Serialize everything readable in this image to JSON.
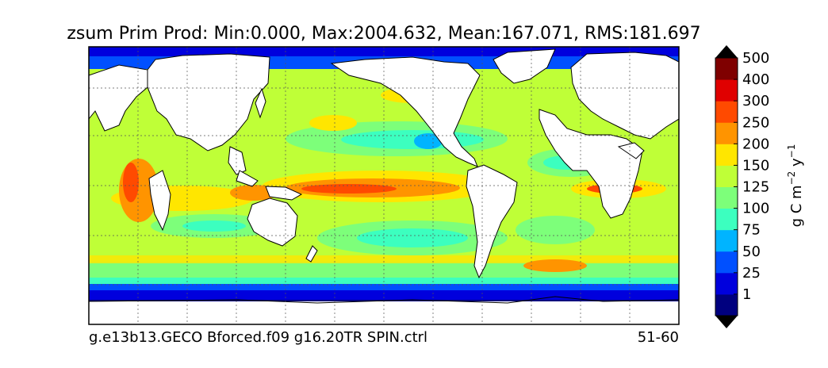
{
  "map": {
    "title": "zsum Prim Prod: Min:0.000, Max:2004.632, Mean:167.071, RMS:181.697",
    "caption_left": "g.e13b13.GECO Bforced.f09 g16.20TR SPIN.ctrl",
    "caption_right": "51-60",
    "grid": "on, dotted lines",
    "projection": "global cylindrical",
    "land_color": "#ffffff"
  },
  "colorbar": {
    "label_main": "g C m",
    "label_exp1": "−2",
    "label_mid": " y",
    "label_exp2": "−1",
    "extend": "both",
    "ticks": [
      "1",
      "25",
      "50",
      "75",
      "100",
      "125",
      "150",
      "200",
      "250",
      "300",
      "400",
      "500"
    ],
    "colors": [
      "#00007f",
      "#0000dd",
      "#0050ff",
      "#00b4ff",
      "#3cffbf",
      "#7dff7a",
      "#bfff37",
      "#ffe600",
      "#ff9400",
      "#ff4a00",
      "#e00000",
      "#7f0000"
    ],
    "under_color": "#000000",
    "over_color": "#000000"
  }
}
